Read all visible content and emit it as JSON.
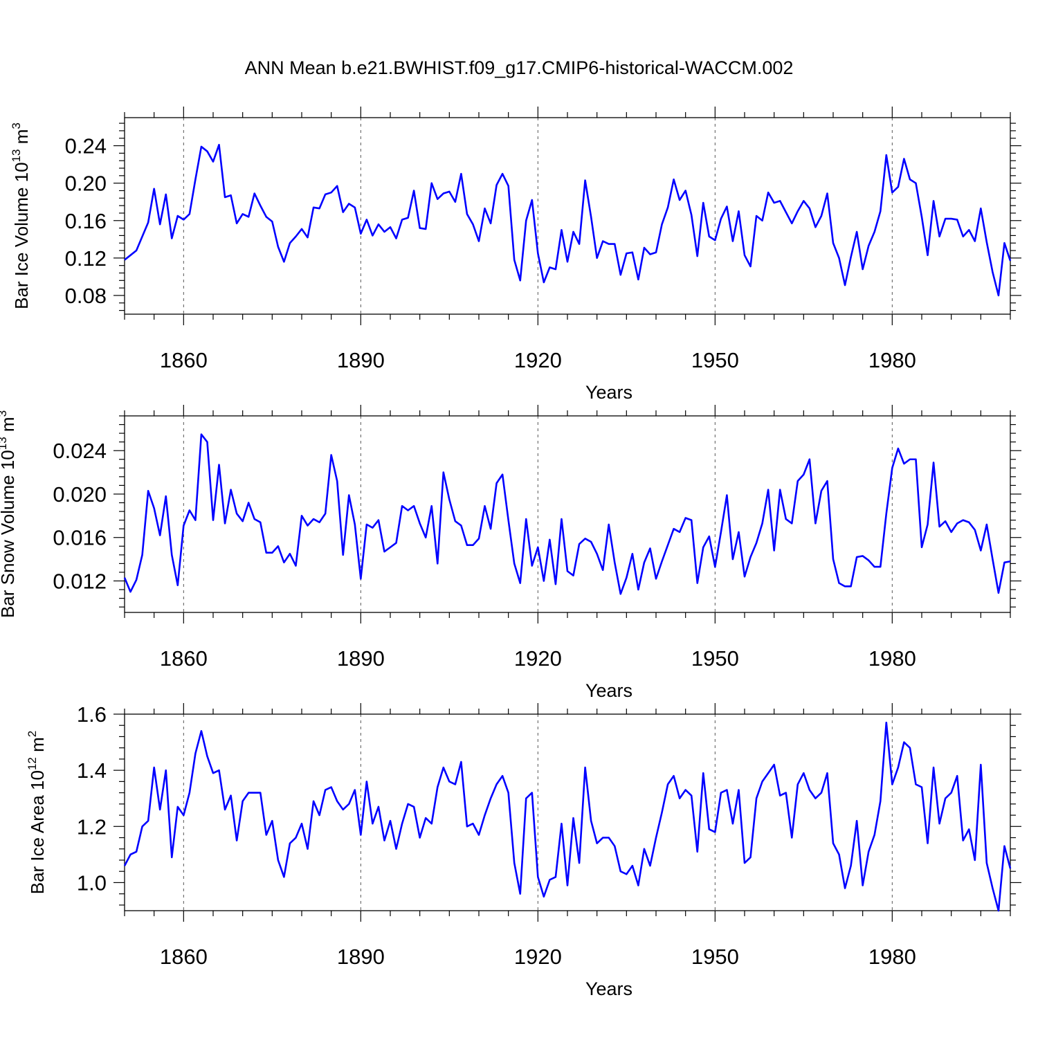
{
  "title": "ANN Mean b.e21.BWHIST.f09_g17.CMIP6-historical-WACCM.002",
  "line_color": "#0000ff",
  "chart_data": [
    {
      "type": "line",
      "ylabel": "Bar Ice Volume 10",
      "ylabel_exp": "13",
      "ylabel_unit": " m",
      "ylabel_unit_exp": "3",
      "xlabel": "Years",
      "xlim": [
        1850,
        2000
      ],
      "ylim": [
        0.06,
        0.27
      ],
      "xticks": [
        1860,
        1890,
        1920,
        1950,
        1980
      ],
      "yticks": [
        0.08,
        0.12,
        0.16,
        0.2,
        0.24
      ],
      "ytick_labels": [
        "0.08",
        "0.12",
        "0.16",
        "0.20",
        "0.24"
      ],
      "x_start": 1850,
      "values": [
        0.118,
        0.123,
        0.128,
        0.143,
        0.158,
        0.194,
        0.156,
        0.188,
        0.141,
        0.165,
        0.161,
        0.167,
        0.204,
        0.239,
        0.234,
        0.223,
        0.241,
        0.185,
        0.187,
        0.157,
        0.167,
        0.164,
        0.189,
        0.176,
        0.164,
        0.159,
        0.132,
        0.116,
        0.136,
        0.143,
        0.151,
        0.142,
        0.174,
        0.173,
        0.188,
        0.19,
        0.197,
        0.169,
        0.178,
        0.174,
        0.146,
        0.161,
        0.144,
        0.156,
        0.148,
        0.153,
        0.141,
        0.161,
        0.163,
        0.192,
        0.152,
        0.151,
        0.2,
        0.183,
        0.189,
        0.191,
        0.18,
        0.21,
        0.167,
        0.156,
        0.138,
        0.173,
        0.157,
        0.198,
        0.21,
        0.197,
        0.118,
        0.096,
        0.16,
        0.182,
        0.125,
        0.094,
        0.11,
        0.108,
        0.15,
        0.116,
        0.148,
        0.135,
        0.203,
        0.164,
        0.12,
        0.138,
        0.135,
        0.135,
        0.102,
        0.125,
        0.126,
        0.097,
        0.131,
        0.124,
        0.126,
        0.156,
        0.174,
        0.204,
        0.182,
        0.192,
        0.166,
        0.122,
        0.179,
        0.143,
        0.139,
        0.162,
        0.175,
        0.138,
        0.17,
        0.123,
        0.111,
        0.165,
        0.16,
        0.19,
        0.179,
        0.181,
        0.169,
        0.157,
        0.17,
        0.181,
        0.173,
        0.153,
        0.165,
        0.189,
        0.136,
        0.12,
        0.091,
        0.121,
        0.148,
        0.108,
        0.133,
        0.148,
        0.17,
        0.23,
        0.19,
        0.196,
        0.226,
        0.204,
        0.2,
        0.164,
        0.123,
        0.181,
        0.143,
        0.162,
        0.162,
        0.161,
        0.143,
        0.15,
        0.138,
        0.173,
        0.137,
        0.105,
        0.08,
        0.136,
        0.117
      ]
    },
    {
      "type": "line",
      "ylabel": "Bar Snow Volume 10",
      "ylabel_exp": "13",
      "ylabel_unit": " m",
      "ylabel_unit_exp": "3",
      "xlabel": "Years",
      "xlim": [
        1850,
        2000
      ],
      "ylim": [
        0.0091,
        0.0272
      ],
      "xticks": [
        1860,
        1890,
        1920,
        1950,
        1980
      ],
      "yticks": [
        0.012,
        0.016,
        0.02,
        0.024
      ],
      "ytick_labels": [
        "0.012",
        "0.016",
        "0.020",
        "0.024"
      ],
      "x_start": 1850,
      "values": [
        0.0123,
        0.011,
        0.0121,
        0.0144,
        0.0203,
        0.0187,
        0.0162,
        0.0198,
        0.0144,
        0.0116,
        0.0171,
        0.0185,
        0.0176,
        0.0255,
        0.0248,
        0.0176,
        0.0227,
        0.0173,
        0.0204,
        0.0182,
        0.0175,
        0.0192,
        0.0177,
        0.0174,
        0.0146,
        0.0146,
        0.0152,
        0.0137,
        0.0145,
        0.0134,
        0.018,
        0.0171,
        0.0177,
        0.0174,
        0.0182,
        0.0236,
        0.0212,
        0.0144,
        0.0199,
        0.0172,
        0.0122,
        0.0172,
        0.0169,
        0.0176,
        0.0147,
        0.0151,
        0.0155,
        0.0189,
        0.0185,
        0.0189,
        0.0173,
        0.016,
        0.0189,
        0.0136,
        0.022,
        0.0195,
        0.0175,
        0.0171,
        0.0153,
        0.0153,
        0.0159,
        0.0189,
        0.0168,
        0.021,
        0.0218,
        0.0176,
        0.0136,
        0.0118,
        0.0177,
        0.0134,
        0.0151,
        0.012,
        0.0158,
        0.0117,
        0.0177,
        0.0129,
        0.0125,
        0.0154,
        0.0159,
        0.0156,
        0.0145,
        0.013,
        0.0172,
        0.0137,
        0.0108,
        0.0123,
        0.0145,
        0.0112,
        0.0137,
        0.015,
        0.0122,
        0.0138,
        0.0153,
        0.0168,
        0.0165,
        0.0178,
        0.0176,
        0.0118,
        0.0151,
        0.0161,
        0.0133,
        0.0165,
        0.0199,
        0.014,
        0.0165,
        0.0124,
        0.0142,
        0.0155,
        0.0173,
        0.0204,
        0.0148,
        0.0204,
        0.0177,
        0.0173,
        0.0212,
        0.0218,
        0.0232,
        0.0173,
        0.0203,
        0.0212,
        0.014,
        0.0118,
        0.0115,
        0.0115,
        0.0142,
        0.0143,
        0.0139,
        0.0133,
        0.0133,
        0.0182,
        0.0224,
        0.0242,
        0.0228,
        0.0232,
        0.0232,
        0.0151,
        0.0172,
        0.0229,
        0.017,
        0.0175,
        0.0165,
        0.0173,
        0.0176,
        0.0174,
        0.0167,
        0.0148,
        0.0172,
        0.014,
        0.0109,
        0.0137,
        0.0138
      ]
    },
    {
      "type": "line",
      "ylabel": "Bar Ice Area 10",
      "ylabel_exp": "12",
      "ylabel_unit": " m",
      "ylabel_unit_exp": "2",
      "xlabel": "Years",
      "xlim": [
        1850,
        2000
      ],
      "ylim": [
        0.9,
        1.6
      ],
      "xticks": [
        1860,
        1890,
        1920,
        1950,
        1980
      ],
      "yticks": [
        1.0,
        1.2,
        1.4,
        1.6
      ],
      "ytick_labels": [
        "1.0",
        "1.2",
        "1.4",
        "1.6"
      ],
      "x_start": 1850,
      "values": [
        1.06,
        1.1,
        1.11,
        1.2,
        1.22,
        1.41,
        1.26,
        1.4,
        1.09,
        1.27,
        1.24,
        1.32,
        1.46,
        1.54,
        1.45,
        1.39,
        1.4,
        1.26,
        1.31,
        1.15,
        1.29,
        1.32,
        1.32,
        1.32,
        1.17,
        1.22,
        1.08,
        1.02,
        1.14,
        1.16,
        1.21,
        1.12,
        1.29,
        1.24,
        1.33,
        1.34,
        1.29,
        1.26,
        1.28,
        1.33,
        1.17,
        1.36,
        1.21,
        1.27,
        1.15,
        1.22,
        1.12,
        1.21,
        1.28,
        1.27,
        1.16,
        1.23,
        1.21,
        1.34,
        1.41,
        1.36,
        1.35,
        1.43,
        1.2,
        1.21,
        1.17,
        1.24,
        1.3,
        1.35,
        1.38,
        1.32,
        1.07,
        0.96,
        1.3,
        1.32,
        1.02,
        0.95,
        1.01,
        1.02,
        1.21,
        0.99,
        1.23,
        1.07,
        1.41,
        1.22,
        1.14,
        1.16,
        1.16,
        1.13,
        1.04,
        1.03,
        1.06,
        0.99,
        1.12,
        1.06,
        1.16,
        1.25,
        1.35,
        1.38,
        1.3,
        1.33,
        1.31,
        1.11,
        1.39,
        1.19,
        1.18,
        1.32,
        1.33,
        1.21,
        1.33,
        1.07,
        1.09,
        1.3,
        1.36,
        1.39,
        1.42,
        1.31,
        1.32,
        1.16,
        1.35,
        1.39,
        1.33,
        1.3,
        1.32,
        1.39,
        1.14,
        1.1,
        0.98,
        1.06,
        1.22,
        0.99,
        1.11,
        1.17,
        1.29,
        1.57,
        1.35,
        1.41,
        1.5,
        1.48,
        1.35,
        1.34,
        1.14,
        1.41,
        1.21,
        1.3,
        1.32,
        1.38,
        1.15,
        1.19,
        1.08,
        1.42,
        1.07,
        0.98,
        0.9,
        1.13,
        1.05
      ]
    }
  ]
}
